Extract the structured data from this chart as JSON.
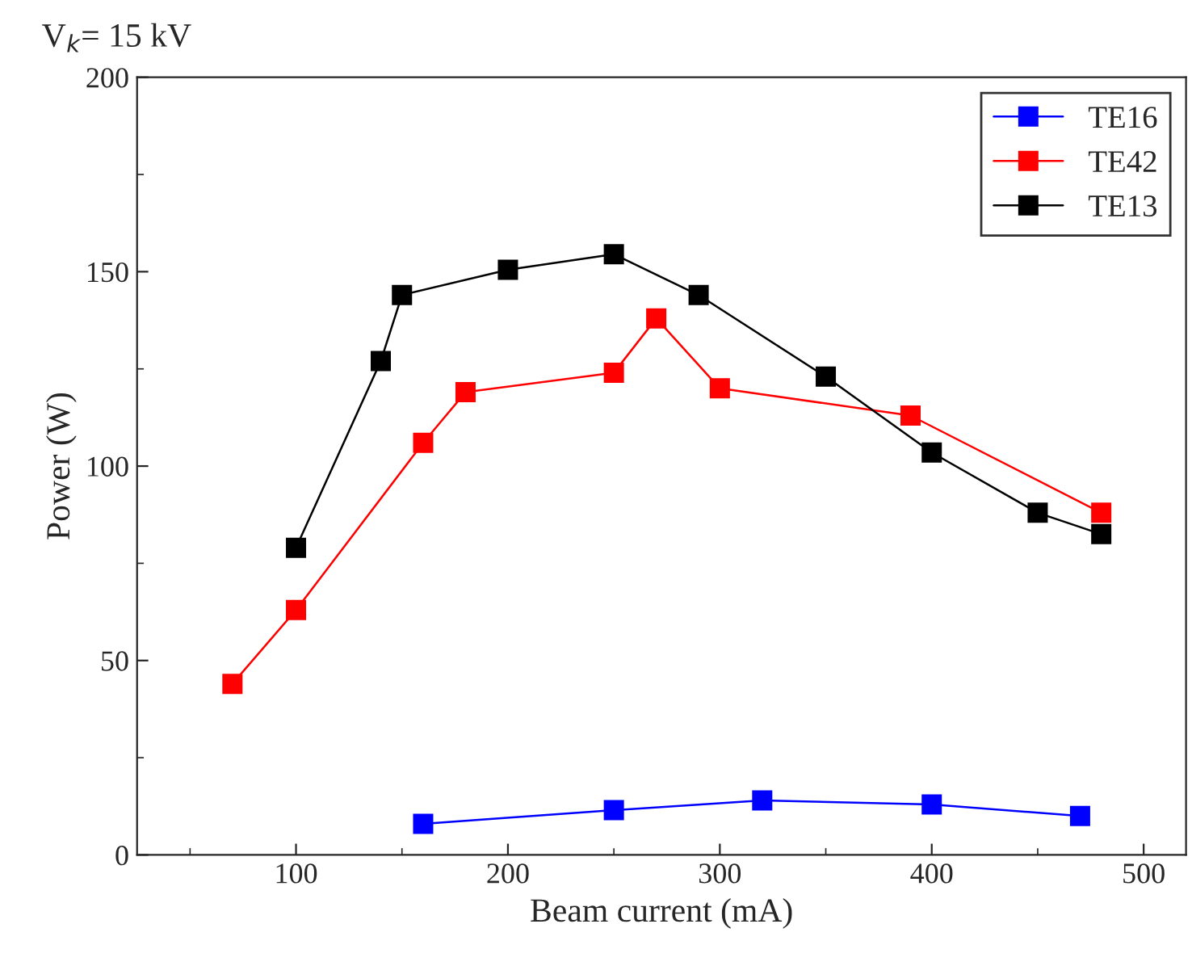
{
  "chart_data": {
    "type": "line",
    "title": "V$_{k}$= 15 kV",
    "xlabel": "Beam current (mA)",
    "ylabel": "Power (W)",
    "xlim": [
      25,
      520
    ],
    "ylim": [
      0,
      200
    ],
    "xticks": [
      100,
      200,
      300,
      400,
      500
    ],
    "yticks": [
      0,
      50,
      100,
      150,
      200
    ],
    "marker": "square",
    "line_style": "solid",
    "legend": "top right",
    "grid": false,
    "series": [
      {
        "name": "TE16",
        "color": "#0000ff",
        "x": [
          160,
          250,
          320,
          400,
          470
        ],
        "values": [
          8,
          11.5,
          14,
          13,
          10
        ]
      },
      {
        "name": "TE42",
        "color": "#ff0000",
        "x": [
          70,
          100,
          160,
          180,
          250,
          270,
          300,
          390,
          480
        ],
        "values": [
          44,
          63,
          106,
          119,
          124,
          138,
          120,
          113,
          88
        ]
      },
      {
        "name": "TE13",
        "color": "#000000",
        "x": [
          100,
          140,
          150,
          200,
          250,
          290,
          350,
          400,
          450,
          480
        ],
        "values": [
          79,
          127,
          144,
          150.5,
          154.5,
          144,
          123,
          103.5,
          88,
          82.5
        ]
      }
    ]
  }
}
